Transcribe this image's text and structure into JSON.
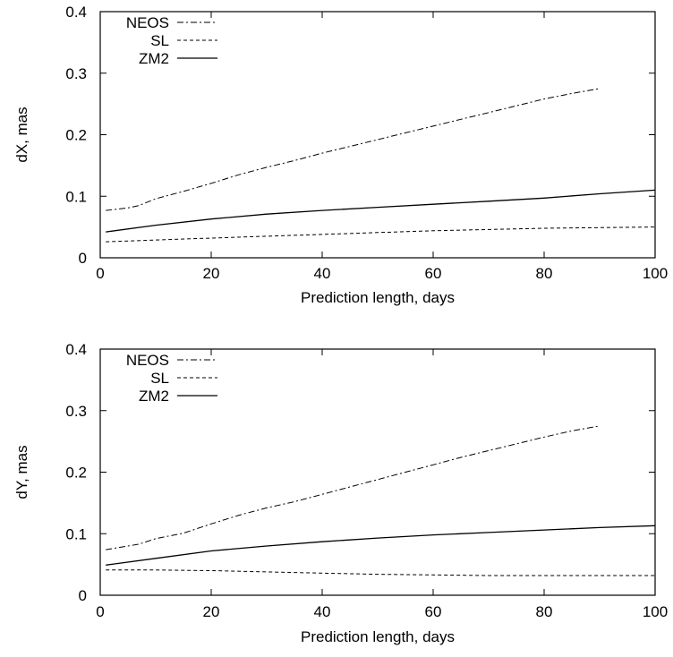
{
  "chart_data": [
    {
      "type": "line",
      "title": "",
      "xlabel": "Prediction length, days",
      "ylabel": "dX, mas",
      "xlim": [
        0,
        100
      ],
      "ylim": [
        0,
        0.4
      ],
      "xticks": [
        0,
        20,
        40,
        60,
        80,
        100
      ],
      "yticks": [
        0,
        0.1,
        0.2,
        0.3,
        0.4
      ],
      "ytick_labels": [
        "0",
        "0.1",
        "0.2",
        "0.3",
        "0.4"
      ],
      "grid": false,
      "legend_position": "top-left",
      "series": [
        {
          "name": "NEOS",
          "style": "dash-dot",
          "x": [
            1,
            5,
            7,
            10,
            15,
            20,
            25,
            30,
            35,
            40,
            45,
            50,
            55,
            60,
            65,
            70,
            75,
            80,
            85,
            90
          ],
          "y": [
            0.077,
            0.081,
            0.085,
            0.096,
            0.108,
            0.121,
            0.135,
            0.147,
            0.158,
            0.17,
            0.181,
            0.192,
            0.203,
            0.214,
            0.225,
            0.236,
            0.247,
            0.258,
            0.267,
            0.275
          ]
        },
        {
          "name": "SL",
          "style": "dashed",
          "x": [
            1,
            10,
            20,
            30,
            40,
            50,
            60,
            70,
            80,
            90,
            100
          ],
          "y": [
            0.026,
            0.029,
            0.032,
            0.035,
            0.038,
            0.041,
            0.044,
            0.046,
            0.048,
            0.049,
            0.05
          ]
        },
        {
          "name": "ZM2",
          "style": "solid",
          "x": [
            1,
            10,
            20,
            30,
            40,
            50,
            60,
            70,
            80,
            90,
            100
          ],
          "y": [
            0.042,
            0.053,
            0.063,
            0.071,
            0.077,
            0.082,
            0.087,
            0.092,
            0.097,
            0.104,
            0.11
          ]
        }
      ]
    },
    {
      "type": "line",
      "title": "",
      "xlabel": "Prediction length, days",
      "ylabel": "dY, mas",
      "xlim": [
        0,
        100
      ],
      "ylim": [
        0,
        0.4
      ],
      "xticks": [
        0,
        20,
        40,
        60,
        80,
        100
      ],
      "yticks": [
        0,
        0.1,
        0.2,
        0.3,
        0.4
      ],
      "ytick_labels": [
        "0",
        "0.1",
        "0.2",
        "0.3",
        "0.4"
      ],
      "grid": false,
      "legend_position": "top-left",
      "series": [
        {
          "name": "NEOS",
          "style": "dash-dot",
          "x": [
            1,
            5,
            7,
            10,
            15,
            20,
            25,
            30,
            35,
            40,
            45,
            50,
            55,
            60,
            65,
            70,
            75,
            80,
            85,
            90
          ],
          "y": [
            0.074,
            0.08,
            0.083,
            0.092,
            0.101,
            0.116,
            0.13,
            0.142,
            0.152,
            0.164,
            0.176,
            0.188,
            0.2,
            0.212,
            0.224,
            0.235,
            0.246,
            0.257,
            0.267,
            0.275
          ]
        },
        {
          "name": "SL",
          "style": "dashed",
          "x": [
            1,
            10,
            20,
            30,
            40,
            50,
            60,
            70,
            80,
            90,
            100
          ],
          "y": [
            0.041,
            0.041,
            0.04,
            0.038,
            0.036,
            0.034,
            0.033,
            0.032,
            0.032,
            0.032,
            0.032
          ]
        },
        {
          "name": "ZM2",
          "style": "solid",
          "x": [
            1,
            10,
            20,
            30,
            40,
            50,
            60,
            70,
            80,
            90,
            100
          ],
          "y": [
            0.049,
            0.06,
            0.072,
            0.08,
            0.087,
            0.093,
            0.098,
            0.102,
            0.106,
            0.11,
            0.113
          ]
        }
      ]
    }
  ]
}
